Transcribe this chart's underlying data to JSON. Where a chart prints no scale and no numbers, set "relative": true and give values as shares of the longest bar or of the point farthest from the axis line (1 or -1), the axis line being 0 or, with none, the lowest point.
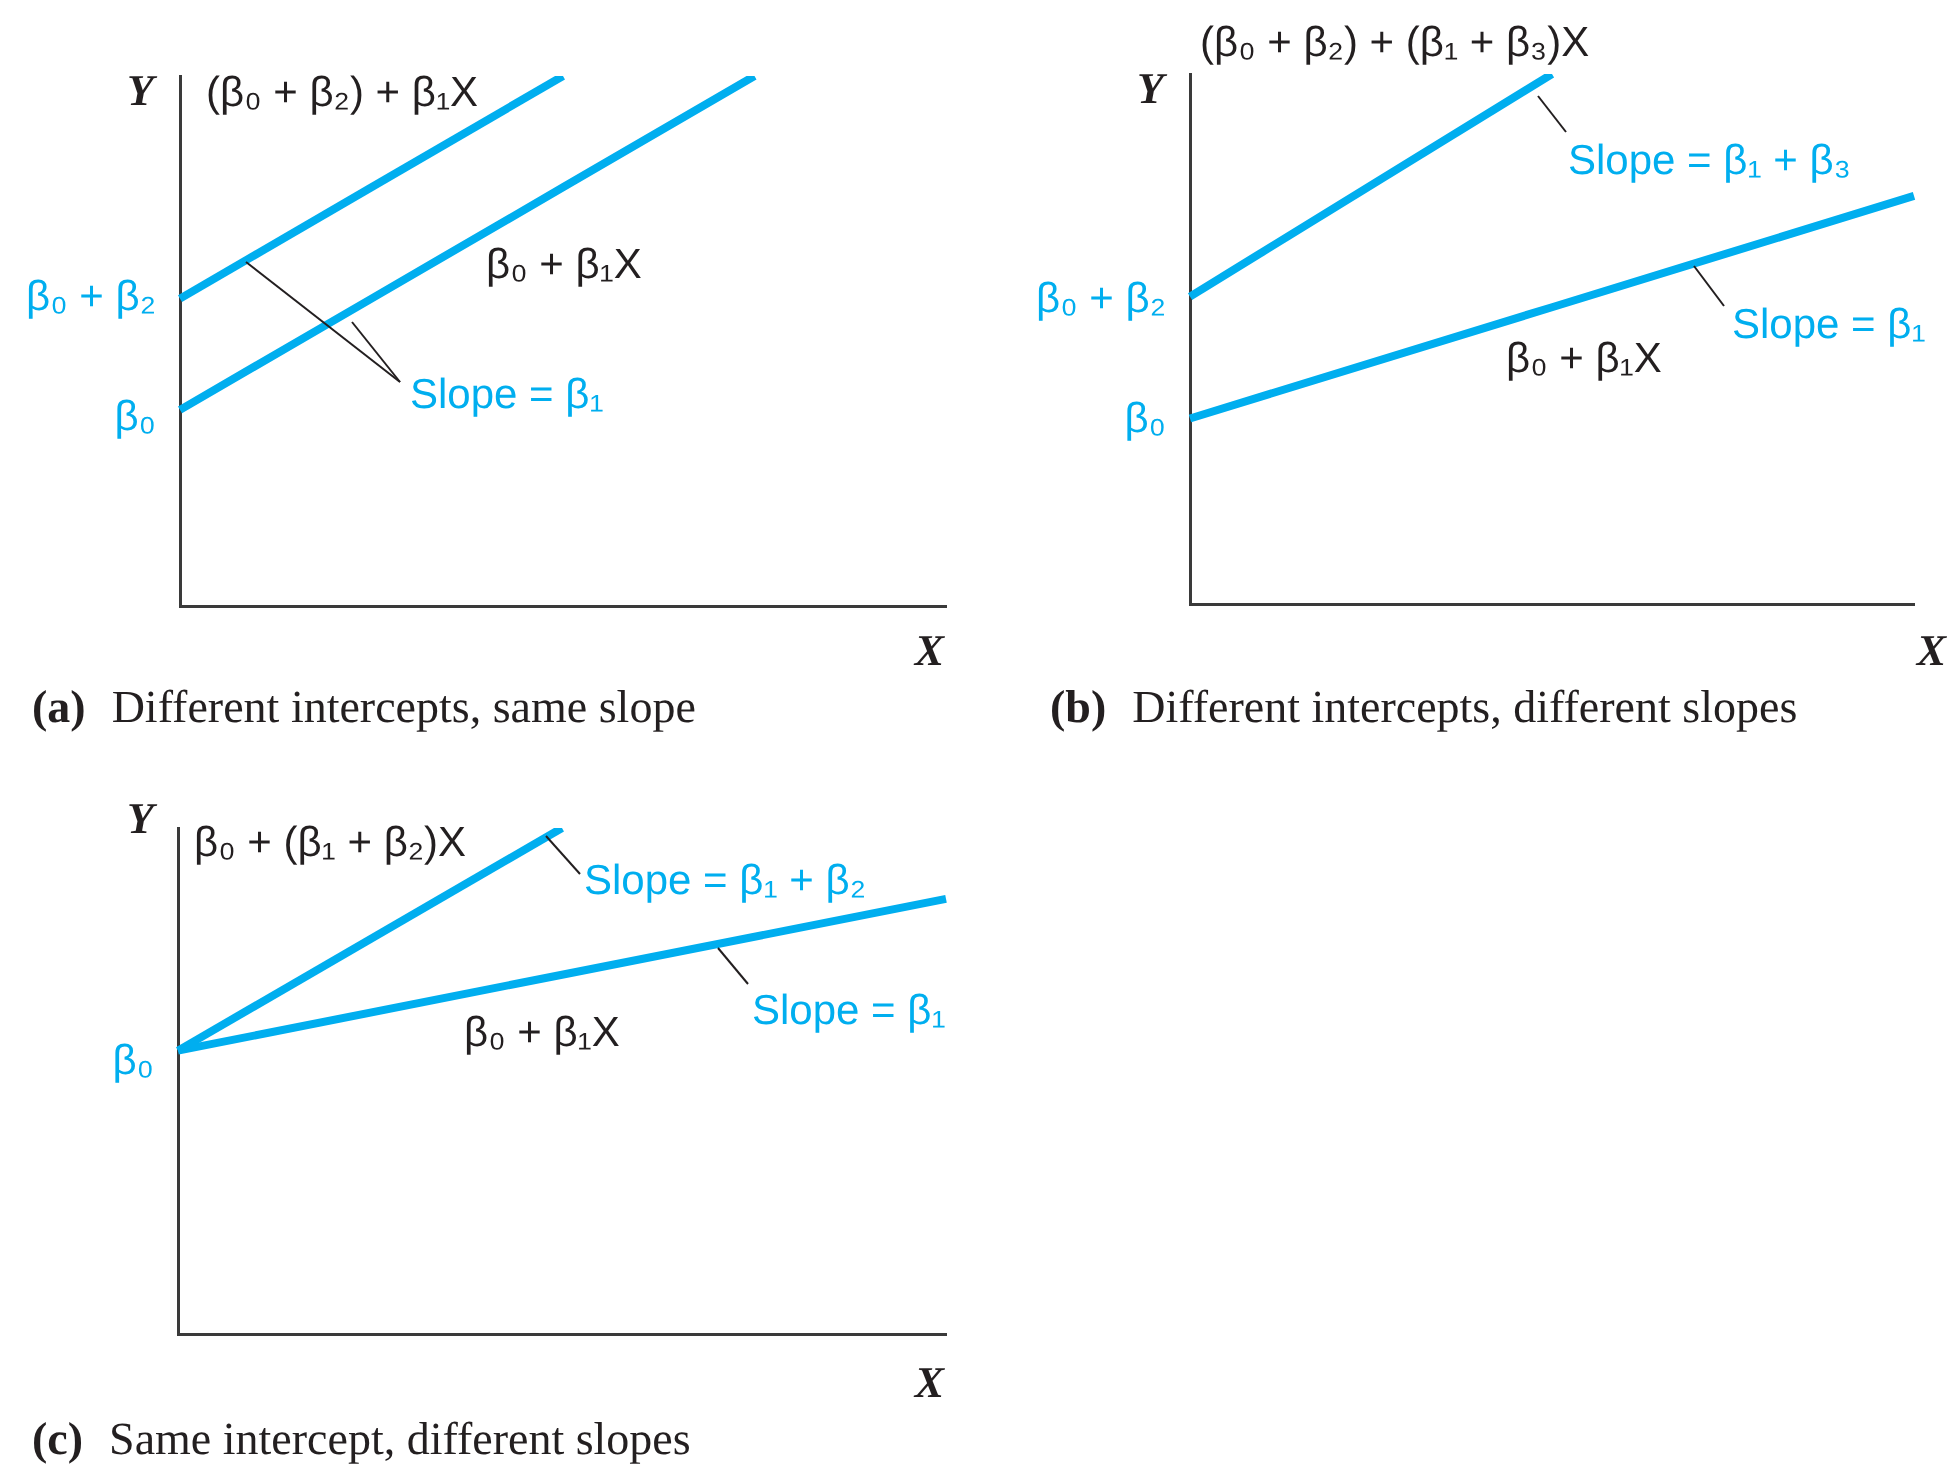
{
  "chart_data": [
    {
      "type": "line",
      "relative": true,
      "title": "(a) Different intercepts, same slope",
      "xlabel": "X",
      "ylabel": "Y",
      "categories": [
        null,
        null,
        null,
        null,
        null
      ],
      "series": [
        {
          "name": "(β₀ + β₂) + β₁X",
          "color": "#00aeef",
          "values": [
            0.58,
            0.79,
            1,
            null,
            null
          ]
        },
        {
          "name": "β₀ + β₁X",
          "color": "#00aeef",
          "values": [
            0.37,
            0.58,
            0.79,
            1,
            null
          ]
        }
      ],
      "annotations": [
        "β₀ + β₂",
        "β₀",
        "Slope = β₁"
      ]
    },
    {
      "type": "line",
      "relative": true,
      "title": "(b) Different intercepts, different slopes",
      "xlabel": "X",
      "ylabel": "Y",
      "categories": [
        null,
        null,
        null
      ],
      "series": [
        {
          "name": "(β₀ + β₂) + (β₁ + β₃)X",
          "color": "#00aeef",
          "values": [
            0.58,
            1,
            null
          ]
        },
        {
          "name": "β₀ + β₁X",
          "color": "#00aeef",
          "values": [
            0.35,
            0.56,
            0.77
          ]
        }
      ],
      "annotations": [
        "β₀ + β₂",
        "β₀",
        "Slope = β₁ + β₃",
        "Slope = β₁"
      ]
    },
    {
      "type": "line",
      "relative": true,
      "title": "(c) Same intercept, different slopes",
      "xlabel": "X",
      "ylabel": "Y",
      "categories": [
        null,
        null,
        null
      ],
      "series": [
        {
          "name": "β₀ + (β₁ + β₂)X",
          "color": "#00aeef",
          "values": [
            0.56,
            1,
            null
          ]
        },
        {
          "name": "β₀ + β₁X",
          "color": "#00aeef",
          "values": [
            0.56,
            0.71,
            0.86
          ]
        }
      ],
      "annotations": [
        "β₀",
        "Slope = β₁ + β₂",
        "Slope = β₁"
      ]
    }
  ]
}
